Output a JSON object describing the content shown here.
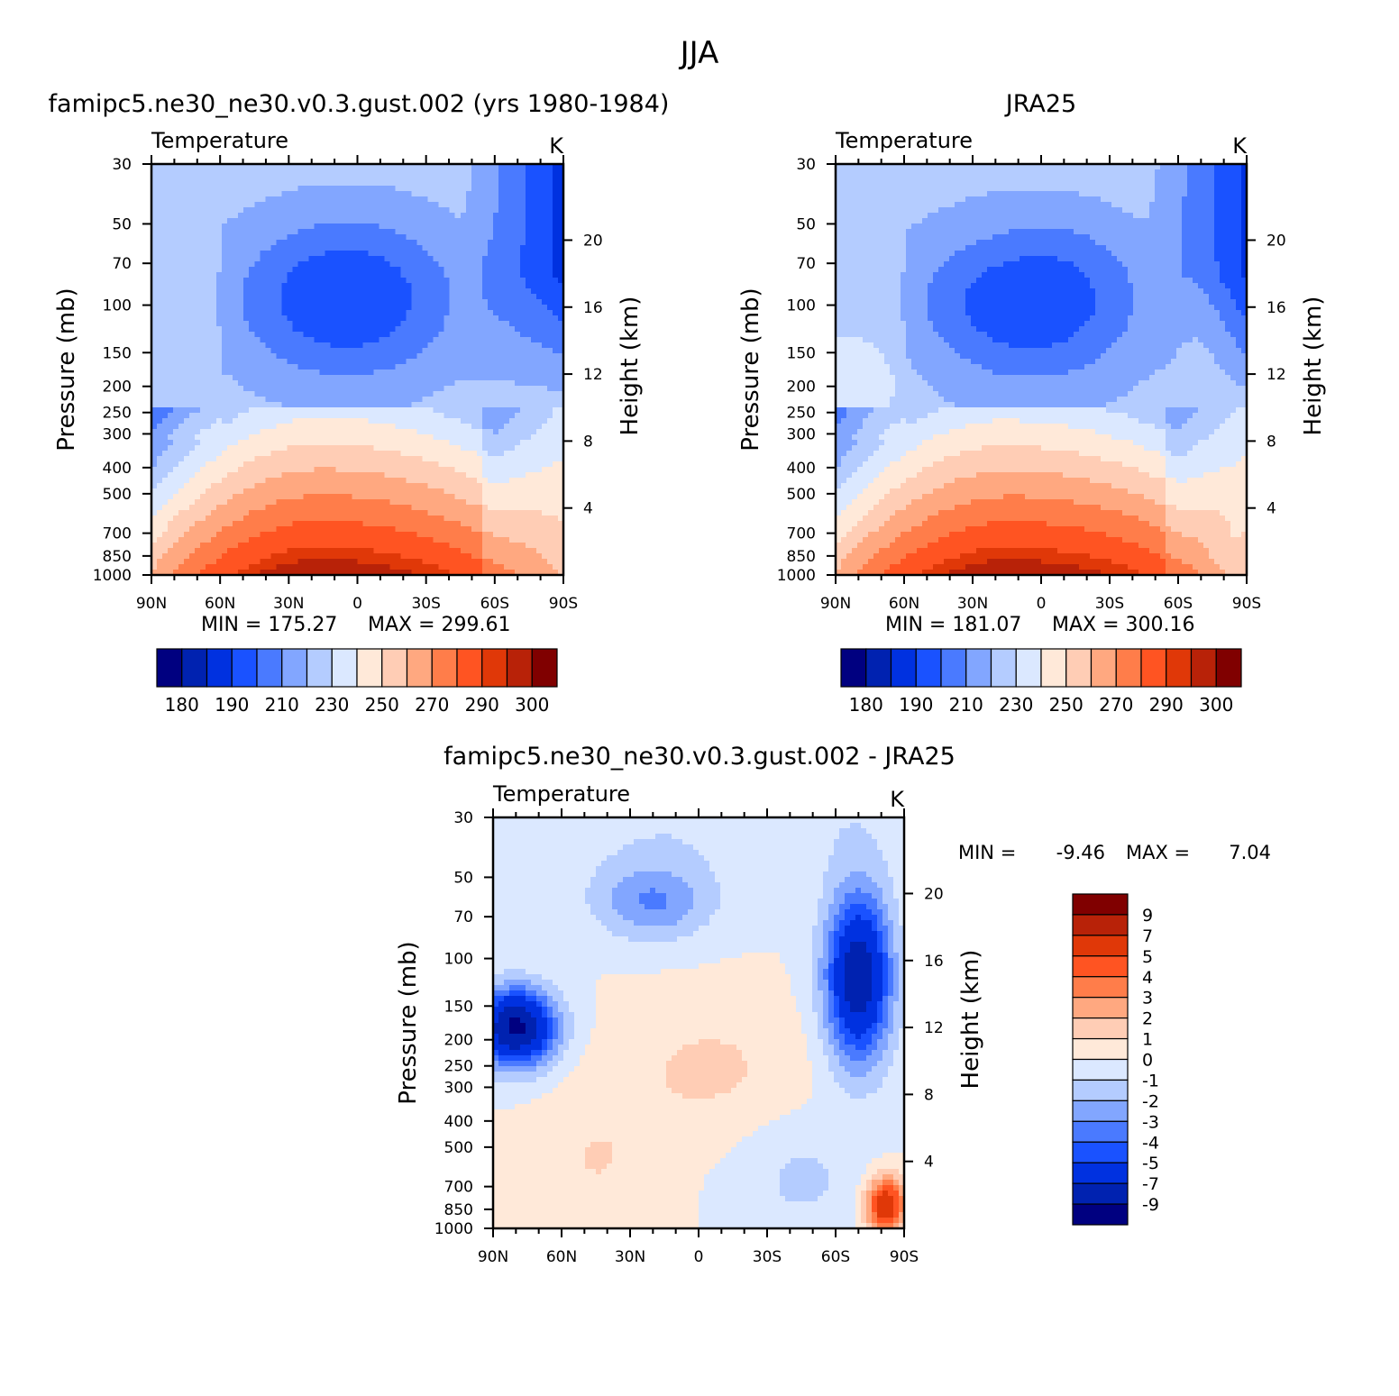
{
  "page_title": "JJA",
  "colors": {
    "model_obs_scale": [
      "#000080",
      "#0022b0",
      "#0031e0",
      "#1a52ff",
      "#4a7aff",
      "#82a6ff",
      "#b4ccff",
      "#dbe8ff",
      "#ffe9d9",
      "#ffcdb5",
      "#ffa880",
      "#ff7d4a",
      "#ff5422",
      "#e03808",
      "#b82208",
      "#800000"
    ],
    "diff_scale": [
      "#000080",
      "#0022b0",
      "#0031e0",
      "#1a52ff",
      "#4a7aff",
      "#82a6ff",
      "#b4ccff",
      "#dbe8ff",
      "#ffe9d9",
      "#ffcdb5",
      "#ffa880",
      "#ff7d4a",
      "#ff5422",
      "#e03808",
      "#b82208",
      "#800000"
    ]
  },
  "chart_data": [
    {
      "type": "heatmap",
      "panel": "model",
      "title": "famipc5.ne30_ne30.v0.3.gust.002 (yrs 1980-1984)",
      "subtitle_left": "Temperature",
      "subtitle_right": "K",
      "xlabel": "",
      "ylabel": "Pressure (mb)",
      "ylabel_right": "Height (km)",
      "x_ticklabels": [
        "90N",
        "60N",
        "30N",
        "0",
        "30S",
        "60S",
        "90S"
      ],
      "y_ticklabels": [
        "30",
        "50",
        "70",
        "100",
        "150",
        "200",
        "250",
        "300",
        "400",
        "500",
        "700",
        "850",
        "1000"
      ],
      "y_right_ticklabels": [
        "20",
        "16",
        "12",
        "8",
        "4"
      ],
      "y_scale": "log",
      "ylim": [
        1000,
        30
      ],
      "min_label": "MIN = 175.27",
      "max_label": "MAX = 299.61",
      "colorbar_labels": [
        "180",
        "190",
        "210",
        "230",
        "250",
        "270",
        "290",
        "300"
      ],
      "field": "model"
    },
    {
      "type": "heatmap",
      "panel": "obs",
      "title": "JRA25",
      "subtitle_left": "Temperature",
      "subtitle_right": "K",
      "xlabel": "",
      "ylabel": "Pressure (mb)",
      "ylabel_right": "Height (km)",
      "x_ticklabels": [
        "90N",
        "60N",
        "30N",
        "0",
        "30S",
        "60S",
        "90S"
      ],
      "y_ticklabels": [
        "30",
        "50",
        "70",
        "100",
        "150",
        "200",
        "250",
        "300",
        "400",
        "500",
        "700",
        "850",
        "1000"
      ],
      "y_right_ticklabels": [
        "20",
        "16",
        "12",
        "8",
        "4"
      ],
      "y_scale": "log",
      "ylim": [
        1000,
        30
      ],
      "min_label": "MIN = 181.07",
      "max_label": "MAX = 300.16",
      "colorbar_labels": [
        "180",
        "190",
        "210",
        "230",
        "250",
        "270",
        "290",
        "300"
      ],
      "field": "obs"
    },
    {
      "type": "heatmap",
      "panel": "diff",
      "title": "famipc5.ne30_ne30.v0.3.gust.002 - JRA25",
      "subtitle_left": "Temperature",
      "subtitle_right": "K",
      "xlabel": "",
      "ylabel": "Pressure (mb)",
      "ylabel_right": "Height (km)",
      "x_ticklabels": [
        "90N",
        "60N",
        "30N",
        "0",
        "30S",
        "60S",
        "90S"
      ],
      "y_ticklabels": [
        "30",
        "50",
        "70",
        "100",
        "150",
        "200",
        "250",
        "300",
        "400",
        "500",
        "700",
        "850",
        "1000"
      ],
      "y_right_ticklabels": [
        "20",
        "16",
        "12",
        "8",
        "4"
      ],
      "y_scale": "log",
      "ylim": [
        1000,
        30
      ],
      "min_label": "MIN =",
      "min_value": "-9.46",
      "max_label": "MAX =",
      "max_value": "7.04",
      "colorbar_labels": [
        "9",
        "7",
        "5",
        "4",
        "3",
        "2",
        "1",
        "0",
        "-1",
        "-2",
        "-3",
        "-4",
        "-5",
        "-7",
        "-9"
      ],
      "field": "diff"
    }
  ]
}
